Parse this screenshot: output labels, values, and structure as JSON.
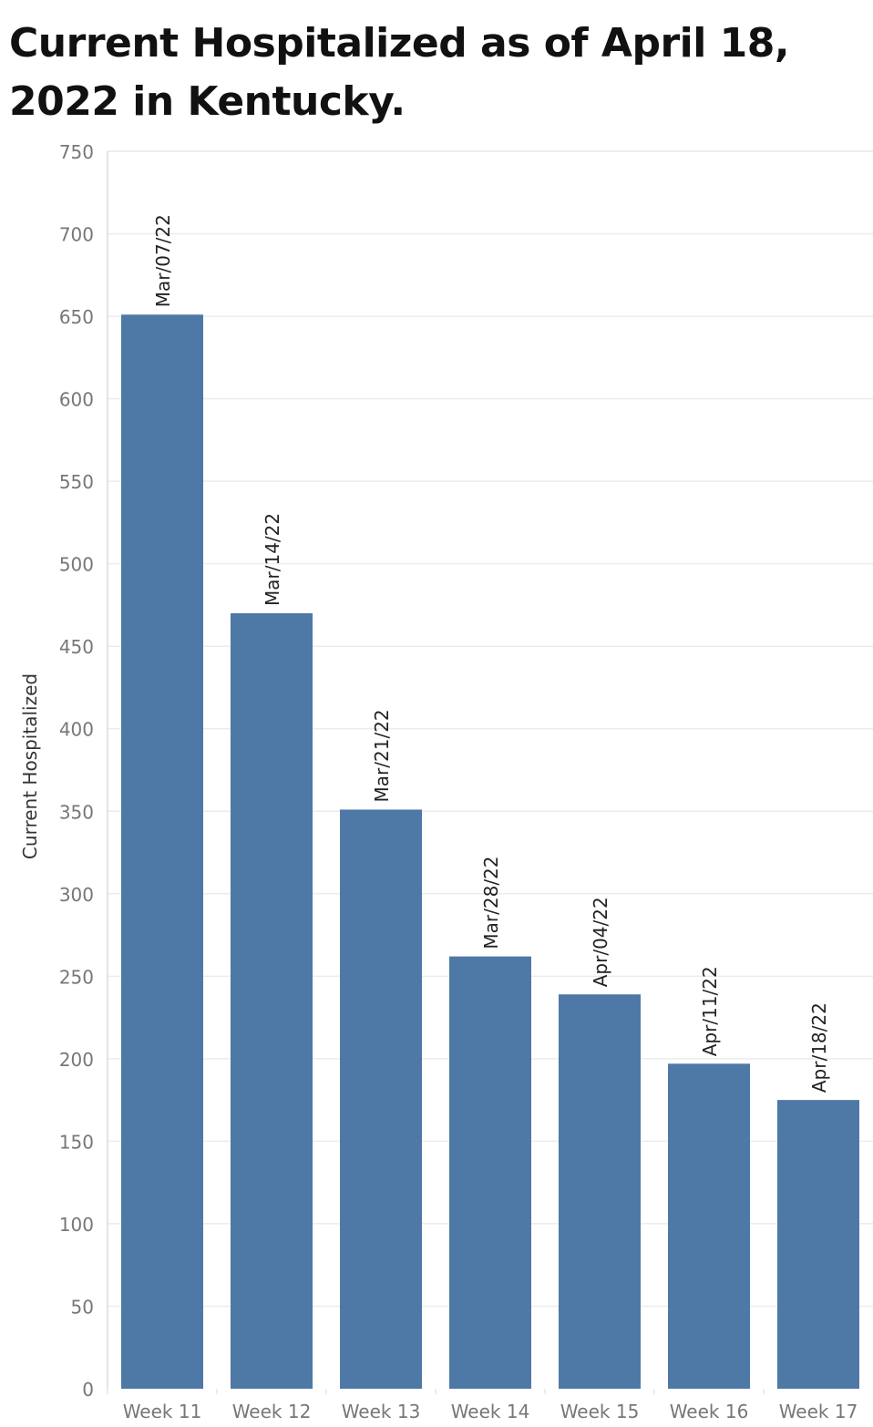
{
  "chart_data": {
    "type": "bar",
    "title": "Current Hospitalized as of April 18, 2022 in Kentucky.",
    "xlabel": "",
    "ylabel": "Current Hospitalized",
    "categories": [
      "Week 11",
      "Week 12",
      "Week 13",
      "Week 14",
      "Week 15",
      "Week 16",
      "Week 17"
    ],
    "values": [
      651,
      470,
      351,
      262,
      239,
      197,
      175
    ],
    "data_labels": [
      "Mar/07/22",
      "Mar/14/22",
      "Mar/21/22",
      "Mar/28/22",
      "Apr/04/22",
      "Apr/11/22",
      "Apr/18/22"
    ],
    "ylim": [
      0,
      750
    ],
    "yticks": [
      0,
      50,
      100,
      150,
      200,
      250,
      300,
      350,
      400,
      450,
      500,
      550,
      600,
      650,
      700,
      750
    ],
    "grid": true,
    "legend": "none",
    "bar_color": "#4e79a7",
    "grid_color": "#ececec"
  }
}
